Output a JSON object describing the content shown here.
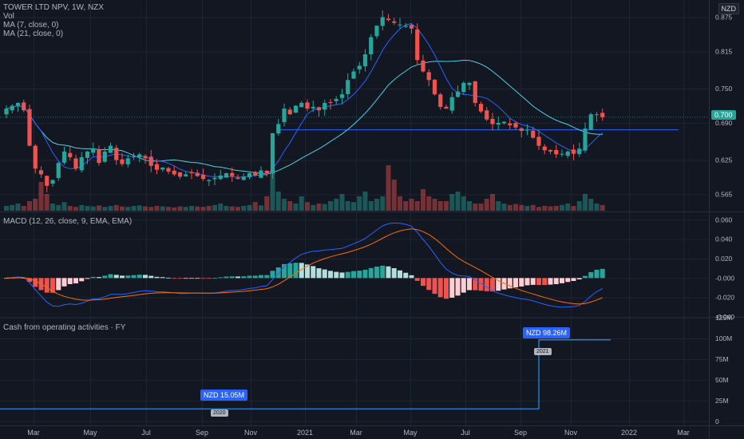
{
  "header": {
    "title": "TOWER LTD NPV, 1W, NZX",
    "vol_label": "Vol",
    "ma7_label": "MA (7, close, 0)",
    "ma21_label": "MA (21, close, 0)",
    "currency": "NZD"
  },
  "macd_panel": {
    "label": "MACD (12, 26, close, 9, EMA, EMA)"
  },
  "cash_panel": {
    "label": "Cash from operating activities · FY",
    "callout_2020": "NZD 15.05M",
    "callout_2021": "NZD 98.26M",
    "year_2020": "2020",
    "year_2021": "2021"
  },
  "last_price_label": "0.700",
  "chart_data": [
    {
      "type": "candlestick",
      "title": "TOWER LTD NPV, 1W, NZX",
      "yticks": [
        "0.875",
        "0.815",
        "0.750",
        "0.690",
        "0.625",
        "0.565"
      ],
      "ylim": [
        0.535,
        0.905
      ],
      "last_price": 0.7,
      "horizontal_line": 0.678,
      "weekly_close": [
        0.715,
        0.72,
        0.725,
        0.712,
        0.65,
        0.61,
        0.6,
        0.58,
        0.59,
        0.62,
        0.64,
        0.63,
        0.61,
        0.63,
        0.64,
        0.645,
        0.62,
        0.64,
        0.65,
        0.625,
        0.618,
        0.628,
        0.632,
        0.635,
        0.628,
        0.615,
        0.608,
        0.612,
        0.605,
        0.6,
        0.596,
        0.6,
        0.602,
        0.597,
        0.592,
        0.59,
        0.594,
        0.598,
        0.602,
        0.597,
        0.592,
        0.596,
        0.602,
        0.598,
        0.607,
        0.602,
        0.672,
        0.688,
        0.715,
        0.705,
        0.72,
        0.725,
        0.715,
        0.718,
        0.712,
        0.725,
        0.725,
        0.732,
        0.74,
        0.765,
        0.78,
        0.79,
        0.81,
        0.84,
        0.86,
        0.875,
        0.87,
        0.865,
        0.862,
        0.86,
        0.855,
        0.8,
        0.78,
        0.765,
        0.74,
        0.718,
        0.715,
        0.735,
        0.745,
        0.76,
        0.76,
        0.725,
        0.71,
        0.696,
        0.688,
        0.69,
        0.692,
        0.686,
        0.682,
        0.676,
        0.678,
        0.664,
        0.65,
        0.642,
        0.64,
        0.635,
        0.636,
        0.64,
        0.636,
        0.645,
        0.68,
        0.705,
        0.705,
        0.7
      ],
      "volume_scale": [
        0.1,
        0.12,
        0.15,
        0.1,
        0.2,
        0.25,
        0.6,
        0.35,
        0.15,
        0.12,
        0.18,
        0.1,
        0.08,
        0.12,
        0.1,
        0.09,
        0.11,
        0.08,
        0.1,
        0.12,
        0.09,
        0.08,
        0.1,
        0.11,
        0.09,
        0.08,
        0.1,
        0.09,
        0.08,
        0.07,
        0.09,
        0.08,
        0.1,
        0.09,
        0.08,
        0.1,
        0.12,
        0.15,
        0.1,
        0.09,
        0.08,
        0.1,
        0.12,
        0.18,
        0.11,
        0.3,
        0.85,
        0.4,
        0.25,
        0.2,
        0.15,
        0.3,
        0.18,
        0.12,
        0.15,
        0.14,
        0.2,
        0.25,
        0.35,
        0.2,
        0.18,
        0.3,
        0.4,
        0.2,
        0.25,
        0.3,
        0.95,
        0.65,
        0.3,
        0.2,
        0.25,
        0.2,
        0.45,
        0.3,
        0.25,
        0.2,
        0.2,
        0.35,
        0.4,
        0.3,
        0.2,
        0.15,
        0.15,
        0.25,
        0.35,
        0.2,
        0.15,
        0.12,
        0.14,
        0.12,
        0.1,
        0.12,
        0.08,
        0.1,
        0.09,
        0.1,
        0.12,
        0.15,
        0.1,
        0.2,
        0.35,
        0.25,
        0.15,
        0.12
      ]
    },
    {
      "type": "line",
      "title": "MACD (12, 26, close, 9, EMA, EMA)",
      "yticks": [
        "0.060",
        "0.040",
        "0.020",
        "-0.000",
        "-0.020",
        "-0.040"
      ],
      "ylim": [
        -0.04,
        0.066
      ]
    },
    {
      "type": "line",
      "title": "Cash from operating activities · FY",
      "yticks": [
        "125M",
        "100M",
        "75M",
        "50M",
        "25M",
        "0"
      ],
      "ylim": [
        -5,
        125
      ],
      "series": [
        {
          "x": [
            "2020",
            "2021"
          ],
          "values": [
            15.05,
            98.26
          ]
        }
      ]
    }
  ],
  "x_axis": {
    "labels": [
      "Mar",
      "May",
      "Jul",
      "Sep",
      "Nov",
      "2021",
      "Mar",
      "May",
      "Jul",
      "Sep",
      "Nov",
      "2022",
      "Mar"
    ]
  },
  "colors": {
    "up": "#26a69a",
    "down": "#ef5350",
    "ma7": "#2962ff",
    "ma21": "#4dd0e1",
    "macd": "#2962ff",
    "signal": "#ff6d00",
    "cash_line": "#2196f3",
    "background": "#131722",
    "grid": "#1f2433"
  }
}
